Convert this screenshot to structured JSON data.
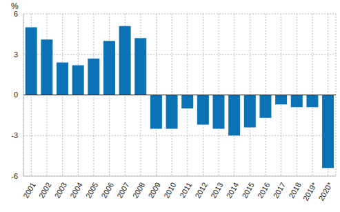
{
  "chart_data": {
    "type": "bar",
    "ylabel": "%",
    "categories": [
      "2001",
      "2002",
      "2003",
      "2004",
      "2005",
      "2006",
      "2007",
      "2008",
      "2009",
      "2010",
      "2011",
      "2012",
      "2013",
      "2014",
      "2015",
      "2016",
      "2017",
      "2018",
      "2019*",
      "2020*"
    ],
    "values": [
      5.0,
      4.1,
      2.4,
      2.2,
      2.7,
      4.0,
      5.1,
      4.2,
      -2.5,
      -2.5,
      -1.0,
      -2.2,
      -2.5,
      -3.0,
      -2.4,
      -1.7,
      -0.7,
      -0.9,
      -0.9,
      -5.4
    ],
    "color": "#0b72b5",
    "ylim": [
      -6,
      6
    ],
    "yticks": [
      -6,
      -3,
      0,
      3,
      6
    ],
    "grid": true
  }
}
